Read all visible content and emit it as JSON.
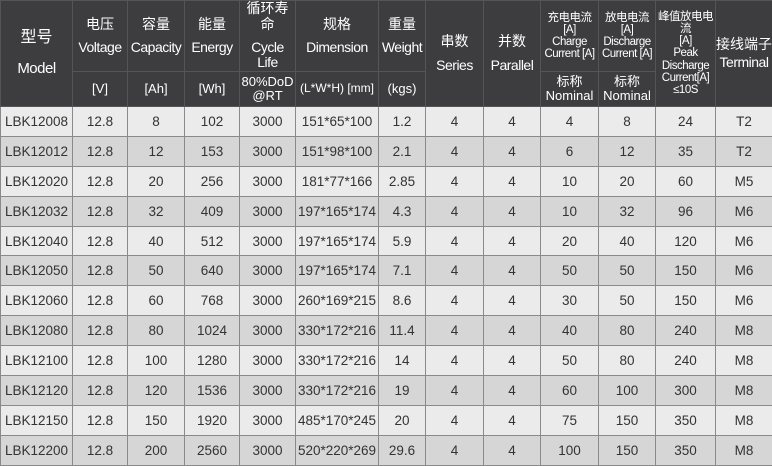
{
  "header": {
    "model": {
      "cn": "型号",
      "en": "Model"
    },
    "voltage": {
      "cn": "电压",
      "en": "Voltage",
      "unit": "[V]"
    },
    "capacity": {
      "cn": "容量",
      "en": "Capacity",
      "unit": "[Ah]"
    },
    "energy": {
      "cn": "能量",
      "en": "Energy",
      "unit": "[Wh]"
    },
    "cycle": {
      "cn": "循环寿命",
      "en": "Cycle Life",
      "unit1": "80%DoD",
      "unit2": "@RT"
    },
    "dimension": {
      "cn": "规格",
      "en": "Dimension",
      "unit": "(L*W*H) [mm]"
    },
    "weight": {
      "cn": "重量",
      "en": "Weight",
      "unit": "(kgs)"
    },
    "series": {
      "cn": "串数",
      "en": "Series"
    },
    "parallel": {
      "cn": "并数",
      "en": "Parallel"
    },
    "charge": {
      "l1": "充电电流",
      "l2": "[A]",
      "l3": "Charge",
      "l4": "Current [A]",
      "n_cn": "标称",
      "n_en": "Nominal"
    },
    "discharge": {
      "l1": "放电电流",
      "l2": "[A]",
      "l3": "Discharge",
      "l4": "Current [A]",
      "n_cn": "标称",
      "n_en": "Nominal"
    },
    "peak": {
      "l1": "峰值放电电流",
      "l2": "[A]",
      "l3": "Peak",
      "l4": "Discharge",
      "l5": "Current[A]",
      "l6": "≤10S"
    },
    "terminal": {
      "cn": "接线端子",
      "en": "Terminal"
    }
  },
  "rows": [
    [
      "LBK12008",
      "12.8",
      "8",
      "102",
      "3000",
      "151*65*100",
      "1.2",
      "4",
      "4",
      "4",
      "8",
      "24",
      "T2"
    ],
    [
      "LBK12012",
      "12.8",
      "12",
      "153",
      "3000",
      "151*98*100",
      "2.1",
      "4",
      "4",
      "6",
      "12",
      "35",
      "T2"
    ],
    [
      "LBK12020",
      "12.8",
      "20",
      "256",
      "3000",
      "181*77*166",
      "2.85",
      "4",
      "4",
      "10",
      "20",
      "60",
      "M5"
    ],
    [
      "LBK12032",
      "12.8",
      "32",
      "409",
      "3000",
      "197*165*174",
      "4.3",
      "4",
      "4",
      "10",
      "32",
      "96",
      "M6"
    ],
    [
      "LBK12040",
      "12.8",
      "40",
      "512",
      "3000",
      "197*165*174",
      "5.9",
      "4",
      "4",
      "20",
      "40",
      "120",
      "M6"
    ],
    [
      "LBK12050",
      "12.8",
      "50",
      "640",
      "3000",
      "197*165*174",
      "7.1",
      "4",
      "4",
      "50",
      "50",
      "150",
      "M6"
    ],
    [
      "LBK12060",
      "12.8",
      "60",
      "768",
      "3000",
      "260*169*215",
      "8.6",
      "4",
      "4",
      "30",
      "50",
      "150",
      "M6"
    ],
    [
      "LBK12080",
      "12.8",
      "80",
      "1024",
      "3000",
      "330*172*216",
      "11.4",
      "4",
      "4",
      "40",
      "80",
      "240",
      "M8"
    ],
    [
      "LBK12100",
      "12.8",
      "100",
      "1280",
      "3000",
      "330*172*216",
      "14",
      "4",
      "4",
      "50",
      "80",
      "240",
      "M8"
    ],
    [
      "LBK12120",
      "12.8",
      "120",
      "1536",
      "3000",
      "330*172*216",
      "19",
      "4",
      "4",
      "60",
      "100",
      "300",
      "M8"
    ],
    [
      "LBK12150",
      "12.8",
      "150",
      "1920",
      "3000",
      "485*170*245",
      "20",
      "4",
      "4",
      "75",
      "150",
      "350",
      "M8"
    ],
    [
      "LBK12200",
      "12.8",
      "200",
      "2560",
      "3000",
      "520*220*269",
      "29.6",
      "4",
      "4",
      "100",
      "150",
      "350",
      "M8"
    ]
  ]
}
